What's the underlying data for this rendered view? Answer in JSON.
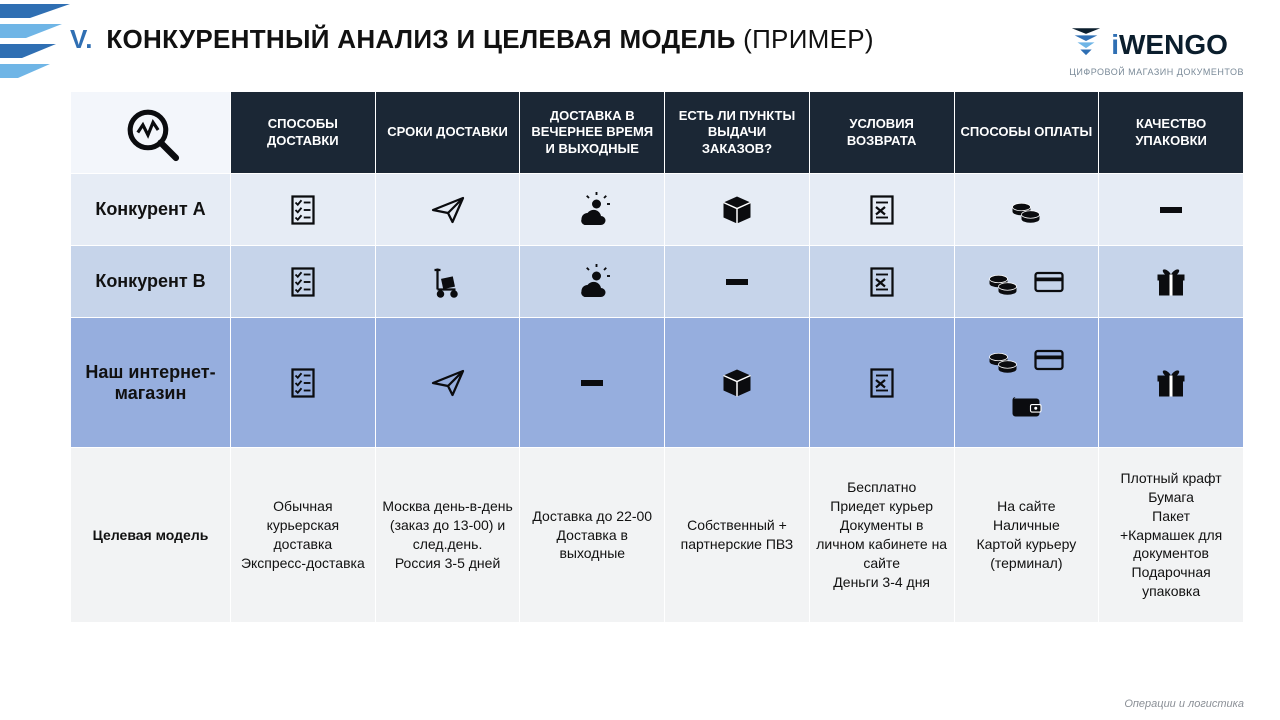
{
  "header": {
    "roman": "V.",
    "title_main": "КОНКУРЕНТНЫЙ АНАЛИЗ И ЦЕЛЕВАЯ МОДЕЛЬ",
    "title_sub": "(ПРИМЕР)"
  },
  "brand": {
    "name_i": "i",
    "name_rest": "WENGO",
    "tagline": "ЦИФРОВОЙ МАГАЗИН ДОКУМЕНТОВ"
  },
  "colors": {
    "header_bg": "#1b2735",
    "row1_bg": "#e6ecf5",
    "row2_bg": "#c6d4ea",
    "row3_bg": "#96aede",
    "row4_bg": "#f2f3f4",
    "accent": "#2f6fb3",
    "icon": "#0b0c0f"
  },
  "table": {
    "columns": [
      "СПОСОБЫ ДОСТАВКИ",
      "СРОКИ ДОСТАВКИ",
      "ДОСТАВКА В ВЕЧЕРНЕЕ ВРЕМЯ И ВЫХОДНЫЕ",
      "ЕСТЬ ЛИ ПУНКТЫ ВЫДАЧИ ЗАКАЗОВ?",
      "УСЛОВИЯ ВОЗВРАТА",
      "СПОСОБЫ ОПЛАТЫ",
      "КАЧЕСТВО УПАКОВКИ"
    ],
    "rows": [
      {
        "label": "Конкурент А",
        "cells": [
          {
            "icons": [
              "checklist"
            ]
          },
          {
            "icons": [
              "paper-plane"
            ]
          },
          {
            "icons": [
              "sun-cloud"
            ]
          },
          {
            "icons": [
              "box"
            ]
          },
          {
            "icons": [
              "doc-cancel"
            ]
          },
          {
            "icons": [
              "coins"
            ]
          },
          {
            "icons": [
              "dash"
            ]
          }
        ]
      },
      {
        "label": "Конкурент В",
        "cells": [
          {
            "icons": [
              "checklist"
            ]
          },
          {
            "icons": [
              "hand-truck"
            ]
          },
          {
            "icons": [
              "sun-cloud"
            ]
          },
          {
            "icons": [
              "dash"
            ]
          },
          {
            "icons": [
              "doc-cancel"
            ]
          },
          {
            "icons": [
              "coins",
              "card"
            ]
          },
          {
            "icons": [
              "gift"
            ]
          }
        ]
      },
      {
        "label": "Наш интернет-магазин",
        "cells": [
          {
            "icons": [
              "checklist"
            ]
          },
          {
            "icons": [
              "paper-plane"
            ]
          },
          {
            "icons": [
              "dash"
            ]
          },
          {
            "icons": [
              "box"
            ]
          },
          {
            "icons": [
              "doc-cancel"
            ]
          },
          {
            "icons": [
              "coins",
              "card",
              "wallet"
            ]
          },
          {
            "icons": [
              "gift"
            ]
          }
        ]
      },
      {
        "label": "Целевая модель",
        "cells": [
          {
            "text": "Обычная курьерская доставка\nЭкспресс-доставка"
          },
          {
            "text": "Москва день-в-день (заказ до 13-00) и след.день.\nРоссия 3-5 дней"
          },
          {
            "text": "Доставка до 22-00\nДоставка в выходные"
          },
          {
            "text": "Собственный + партнерские ПВЗ"
          },
          {
            "text": "Бесплатно\nПриедет курьер\nДокументы в личном кабинете на сайте\nДеньги 3-4 дня"
          },
          {
            "text": "На сайте\nНаличные\nКартой курьеру (терминал)"
          },
          {
            "text": "Плотный крафт\nБумага\nПакет\n+Кармашек для документов\nПодарочная упаковка"
          }
        ]
      }
    ]
  },
  "footer": "Операции и логистика"
}
